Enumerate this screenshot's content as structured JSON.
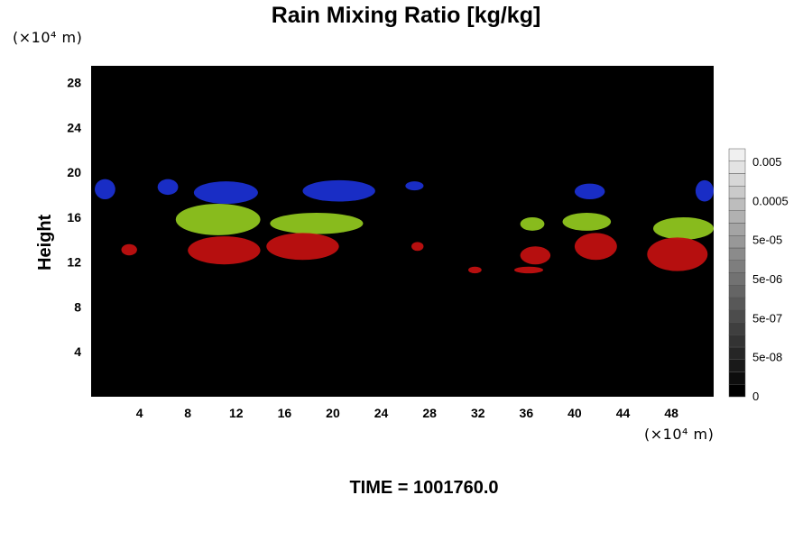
{
  "title": "Rain Mixing Ratio [kg/kg]",
  "y_unit_label": "(×10⁴ m)",
  "x_unit_label": "(×10⁴ m)",
  "time_label": "TIME = 1001760.0",
  "chart_data": {
    "type": "heatmap",
    "title": "Rain Mixing Ratio [kg/kg]",
    "xlabel": "",
    "ylabel": "Height",
    "xlim": [
      0,
      51.5
    ],
    "ylim": [
      0,
      29.5
    ],
    "x_ticks": [
      4,
      8,
      12,
      16,
      20,
      24,
      28,
      32,
      36,
      40,
      44,
      48
    ],
    "y_ticks": [
      4,
      8,
      12,
      16,
      20,
      24,
      28
    ],
    "background_color": "#000000",
    "colorbar": {
      "ticks": [
        "0.005",
        "0.0005",
        "5e-05",
        "5e-06",
        "5e-07",
        "5e-08",
        "0"
      ],
      "levels": 20
    },
    "features": [
      {
        "color": "#1a2fd0",
        "x": [
          0.3,
          2.0
        ],
        "y": [
          17.6,
          19.4
        ]
      },
      {
        "color": "#1a2fd0",
        "x": [
          5.5,
          7.2
        ],
        "y": [
          18.0,
          19.4
        ]
      },
      {
        "color": "#1a2fd0",
        "x": [
          8.5,
          13.8
        ],
        "y": [
          17.2,
          19.2
        ]
      },
      {
        "color": "#1a2fd0",
        "x": [
          17.5,
          23.5
        ],
        "y": [
          17.4,
          19.3
        ]
      },
      {
        "color": "#1a2fd0",
        "x": [
          26.0,
          27.5
        ],
        "y": [
          18.4,
          19.2
        ]
      },
      {
        "color": "#1a2fd0",
        "x": [
          40.0,
          42.5
        ],
        "y": [
          17.6,
          19.0
        ]
      },
      {
        "color": "#1a2fd0",
        "x": [
          50.0,
          51.5
        ],
        "y": [
          17.4,
          19.3
        ]
      },
      {
        "color": "#8fc51f",
        "x": [
          7.0,
          14.0
        ],
        "y": [
          14.4,
          17.2
        ]
      },
      {
        "color": "#8fc51f",
        "x": [
          14.8,
          22.5
        ],
        "y": [
          14.5,
          16.4
        ]
      },
      {
        "color": "#8fc51f",
        "x": [
          35.5,
          37.5
        ],
        "y": [
          14.8,
          16.0
        ]
      },
      {
        "color": "#8fc51f",
        "x": [
          39.0,
          43.0
        ],
        "y": [
          14.8,
          16.4
        ]
      },
      {
        "color": "#8fc51f",
        "x": [
          46.5,
          51.5
        ],
        "y": [
          14.0,
          16.0
        ]
      },
      {
        "color": "#c01010",
        "x": [
          8.0,
          14.0
        ],
        "y": [
          11.8,
          14.3
        ]
      },
      {
        "color": "#c01010",
        "x": [
          14.5,
          20.5
        ],
        "y": [
          12.2,
          14.6
        ]
      },
      {
        "color": "#c01010",
        "x": [
          2.5,
          3.8
        ],
        "y": [
          12.6,
          13.6
        ]
      },
      {
        "color": "#c01010",
        "x": [
          26.5,
          27.5
        ],
        "y": [
          13.0,
          13.8
        ]
      },
      {
        "color": "#c01010",
        "x": [
          35.5,
          38.0
        ],
        "y": [
          11.8,
          13.4
        ]
      },
      {
        "color": "#c01010",
        "x": [
          40.0,
          43.5
        ],
        "y": [
          12.2,
          14.6
        ]
      },
      {
        "color": "#c01010",
        "x": [
          46.0,
          51.0
        ],
        "y": [
          11.2,
          14.2
        ]
      },
      {
        "color": "#c01010",
        "x": [
          31.2,
          32.3
        ],
        "y": [
          11.0,
          11.6
        ]
      },
      {
        "color": "#c01010",
        "x": [
          35.0,
          37.4
        ],
        "y": [
          11.0,
          11.6
        ]
      }
    ]
  }
}
